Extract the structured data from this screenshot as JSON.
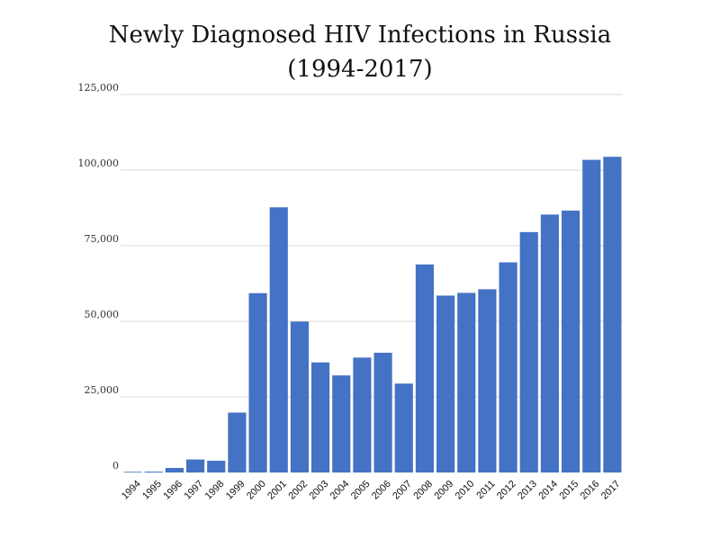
{
  "chart_data": {
    "type": "bar",
    "title": "Newly Diagnosed HIV Infections in Russia",
    "subtitle": "(1994-2017)",
    "xlabel": "",
    "ylabel": "",
    "ylim": [
      0,
      125000
    ],
    "yticks": [
      "0",
      "25,000",
      "50,000",
      "75,000",
      "100,000",
      "125,000"
    ],
    "grid": true,
    "legend": "none",
    "bar_color": "#4472c4",
    "categories": [
      "1994",
      "1995",
      "1996",
      "1997",
      "1998",
      "1999",
      "2000",
      "2001",
      "2002",
      "2003",
      "2004",
      "2005",
      "2006",
      "2007",
      "2008",
      "2009",
      "2010",
      "2011",
      "2012",
      "2013",
      "2014",
      "2015",
      "2016",
      "2017"
    ],
    "values": [
      100,
      300,
      1500,
      4300,
      3900,
      19800,
      59300,
      87700,
      49900,
      36400,
      32100,
      38000,
      39600,
      29400,
      68800,
      58500,
      59400,
      60600,
      69500,
      79500,
      85300,
      86600,
      103400,
      104400
    ]
  }
}
